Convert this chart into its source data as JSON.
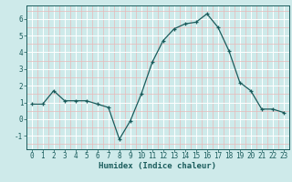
{
  "x": [
    0,
    1,
    2,
    3,
    4,
    5,
    6,
    7,
    8,
    9,
    10,
    11,
    12,
    13,
    14,
    15,
    16,
    17,
    18,
    19,
    20,
    21,
    22,
    23
  ],
  "y": [
    0.9,
    0.9,
    1.7,
    1.1,
    1.1,
    1.1,
    0.9,
    0.7,
    -1.2,
    -0.1,
    1.5,
    3.4,
    4.7,
    5.4,
    5.7,
    5.8,
    6.3,
    5.5,
    4.1,
    2.2,
    1.7,
    0.6,
    0.6,
    0.4
  ],
  "xlabel": "Humidex (Indice chaleur)",
  "ylim": [
    -1.8,
    6.8
  ],
  "xlim": [
    -0.5,
    23.5
  ],
  "bg_color": "#ceeaea",
  "grid_major_color": "#ffffff",
  "grid_minor_color": "#e8b8b8",
  "line_color": "#1a5c5c",
  "marker_color": "#1a5c5c",
  "yticks": [
    -1,
    0,
    1,
    2,
    3,
    4,
    5,
    6
  ],
  "xticks": [
    0,
    1,
    2,
    3,
    4,
    5,
    6,
    7,
    8,
    9,
    10,
    11,
    12,
    13,
    14,
    15,
    16,
    17,
    18,
    19,
    20,
    21,
    22,
    23
  ],
  "label_fontsize": 6.5,
  "tick_fontsize": 5.5
}
